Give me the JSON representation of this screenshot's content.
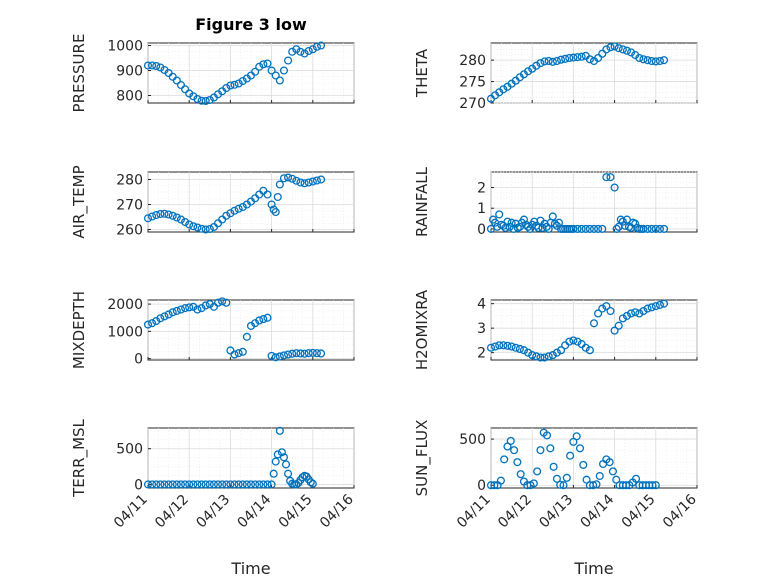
{
  "figure": {
    "title": "Figure 3 low",
    "xlabel": "Time"
  },
  "colors": {
    "marker": "#0072BD",
    "axes": "#262626",
    "grid": "#dcdcdc"
  },
  "chart_data": [
    {
      "type": "scatter",
      "name": "PRESSURE",
      "ylabel": "PRESSURE",
      "ylim": [
        770,
        1010
      ],
      "yticks": [
        800,
        900,
        1000
      ],
      "xlim": [
        "04/11",
        "04/16"
      ],
      "xticks": [],
      "grid": true,
      "x": [
        11.0,
        11.1,
        11.2,
        11.3,
        11.4,
        11.5,
        11.6,
        11.7,
        11.8,
        11.9,
        12.0,
        12.1,
        12.2,
        12.3,
        12.4,
        12.5,
        12.6,
        12.7,
        12.8,
        12.9,
        13.0,
        13.1,
        13.2,
        13.3,
        13.4,
        13.5,
        13.6,
        13.7,
        13.8,
        13.9,
        14.0,
        14.1,
        14.2,
        14.3,
        14.4,
        14.5,
        14.6,
        14.7,
        14.8,
        14.9,
        15.0,
        15.1,
        15.2
      ],
      "y": [
        920,
        920,
        918,
        912,
        902,
        890,
        875,
        860,
        842,
        825,
        808,
        797,
        786,
        779,
        778,
        782,
        792,
        805,
        817,
        830,
        840,
        843,
        848,
        858,
        868,
        880,
        895,
        915,
        925,
        928,
        900,
        880,
        860,
        900,
        940,
        975,
        985,
        975,
        968,
        978,
        985,
        995,
        1000
      ]
    },
    {
      "type": "scatter",
      "name": "THETA",
      "ylabel": "THETA",
      "ylim": [
        270,
        284
      ],
      "yticks": [
        270,
        275,
        280
      ],
      "xlim": [
        "04/11",
        "04/16"
      ],
      "xticks": [],
      "grid": true,
      "x": [
        11.0,
        11.1,
        11.2,
        11.3,
        11.4,
        11.5,
        11.6,
        11.7,
        11.8,
        11.9,
        12.0,
        12.1,
        12.2,
        12.3,
        12.4,
        12.5,
        12.6,
        12.7,
        12.8,
        12.9,
        13.0,
        13.1,
        13.2,
        13.3,
        13.4,
        13.5,
        13.6,
        13.7,
        13.8,
        13.9,
        14.0,
        14.1,
        14.2,
        14.3,
        14.4,
        14.5,
        14.6,
        14.7,
        14.8,
        14.9,
        15.0,
        15.1,
        15.2
      ],
      "y": [
        271,
        271.8,
        272.5,
        273.2,
        273.8,
        274.5,
        275.2,
        276,
        276.7,
        277.4,
        278,
        278.7,
        279.3,
        279.7,
        279.8,
        279.6,
        279.8,
        280.1,
        280.3,
        280.5,
        280.6,
        280.7,
        280.8,
        281,
        280.2,
        279.8,
        280.5,
        281.5,
        282.5,
        283,
        283.2,
        282.8,
        282.5,
        282.2,
        281.8,
        281.2,
        280.5,
        280.2,
        280,
        279.8,
        279.7,
        279.8,
        280
      ]
    },
    {
      "type": "scatter",
      "name": "AIR_TEMP",
      "ylabel": "AIR_TEMP",
      "ylim": [
        259,
        283
      ],
      "yticks": [
        260,
        270,
        280
      ],
      "xlim": [
        "04/11",
        "04/16"
      ],
      "xticks": [],
      "grid": true,
      "x": [
        11.0,
        11.1,
        11.2,
        11.3,
        11.4,
        11.5,
        11.6,
        11.7,
        11.8,
        11.9,
        12.0,
        12.1,
        12.2,
        12.3,
        12.4,
        12.5,
        12.6,
        12.7,
        12.8,
        12.9,
        13.0,
        13.1,
        13.2,
        13.3,
        13.4,
        13.5,
        13.6,
        13.7,
        13.8,
        13.9,
        14.0,
        14.05,
        14.1,
        14.15,
        14.2,
        14.3,
        14.4,
        14.5,
        14.6,
        14.7,
        14.8,
        14.9,
        15.0,
        15.1,
        15.2
      ],
      "y": [
        264.5,
        265.2,
        265.8,
        266.2,
        266.3,
        266,
        265.5,
        264.8,
        264,
        263,
        262,
        261.3,
        260.8,
        260.3,
        260,
        260.2,
        261,
        262.5,
        264,
        265.5,
        266.5,
        267.5,
        268.3,
        269,
        270,
        271.2,
        272.5,
        274,
        275.5,
        274,
        270,
        268,
        267,
        273,
        278,
        280.5,
        280.8,
        280.3,
        279.5,
        278.8,
        278.5,
        278.8,
        279.2,
        279.6,
        280
      ]
    },
    {
      "type": "scatter",
      "name": "RAINFALL",
      "ylabel": "RAINFALL",
      "ylim": [
        -0.15,
        2.75
      ],
      "yticks": [
        0,
        1,
        2
      ],
      "xlim": [
        "04/11",
        "04/16"
      ],
      "xticks": [],
      "grid": true,
      "x": [
        11.0,
        11.05,
        11.1,
        11.15,
        11.2,
        11.25,
        11.3,
        11.35,
        11.4,
        11.45,
        11.5,
        11.55,
        11.6,
        11.65,
        11.7,
        11.75,
        11.8,
        11.85,
        11.9,
        11.95,
        12.0,
        12.05,
        12.1,
        12.15,
        12.2,
        12.25,
        12.3,
        12.35,
        12.4,
        12.45,
        12.5,
        12.55,
        12.6,
        12.65,
        12.7,
        12.75,
        12.8,
        12.85,
        12.9,
        12.95,
        13.0,
        13.1,
        13.2,
        13.3,
        13.4,
        13.5,
        13.6,
        13.7,
        13.8,
        13.9,
        14.0,
        14.05,
        14.1,
        14.15,
        14.2,
        14.25,
        14.3,
        14.35,
        14.4,
        14.45,
        14.5,
        14.55,
        14.6,
        14.65,
        14.7,
        14.8,
        14.9,
        15.0,
        15.1,
        15.2
      ],
      "y": [
        0,
        0.45,
        0.3,
        0.1,
        0.7,
        0.2,
        0.15,
        0.05,
        0.35,
        0.1,
        0.3,
        0,
        0.25,
        0.05,
        0.1,
        0.3,
        0.45,
        0.2,
        0.1,
        0,
        0.2,
        0.35,
        0.15,
        0.05,
        0.4,
        0.05,
        0.25,
        0.1,
        0,
        0.3,
        0.6,
        0.25,
        0.15,
        0.3,
        0,
        0,
        0,
        0,
        0,
        0,
        0,
        0,
        0,
        0,
        0,
        0,
        0,
        0,
        2.5,
        2.5,
        2.0,
        0,
        0.1,
        0.45,
        0.35,
        0.15,
        0.45,
        0.1,
        0.05,
        0.3,
        0.25,
        0.05,
        0,
        0,
        0,
        0,
        0,
        0,
        0,
        0
      ]
    },
    {
      "type": "scatter",
      "name": "MIXDEPTH",
      "ylabel": "MIXDEPTH",
      "ylim": [
        -50,
        2150
      ],
      "yticks": [
        0,
        1000,
        2000
      ],
      "xlim": [
        "04/11",
        "04/16"
      ],
      "xticks": [],
      "grid": true,
      "x": [
        11.0,
        11.1,
        11.2,
        11.3,
        11.4,
        11.5,
        11.6,
        11.7,
        11.8,
        11.9,
        12.0,
        12.1,
        12.2,
        12.3,
        12.4,
        12.5,
        12.6,
        12.7,
        12.8,
        12.9,
        13.0,
        13.1,
        13.2,
        13.3,
        13.4,
        13.5,
        13.6,
        13.7,
        13.8,
        13.9,
        14.0,
        14.1,
        14.2,
        14.3,
        14.4,
        14.5,
        14.6,
        14.7,
        14.8,
        14.9,
        15.0,
        15.1,
        15.2
      ],
      "y": [
        1250,
        1300,
        1380,
        1480,
        1550,
        1620,
        1700,
        1750,
        1800,
        1850,
        1880,
        1900,
        1800,
        1850,
        1950,
        2000,
        1900,
        2050,
        2100,
        2050,
        300,
        150,
        200,
        250,
        800,
        1200,
        1300,
        1400,
        1450,
        1500,
        100,
        50,
        80,
        120,
        150,
        180,
        200,
        190,
        180,
        200,
        210,
        200,
        190
      ]
    },
    {
      "type": "scatter",
      "name": "H2OMIXRA",
      "ylabel": "H2OMIXRA",
      "ylim": [
        1.7,
        4.15
      ],
      "yticks": [
        2,
        3,
        4
      ],
      "xlim": [
        "04/11",
        "04/16"
      ],
      "xticks": [],
      "grid": true,
      "x": [
        11.0,
        11.1,
        11.2,
        11.3,
        11.4,
        11.5,
        11.6,
        11.7,
        11.8,
        11.9,
        12.0,
        12.1,
        12.2,
        12.3,
        12.4,
        12.5,
        12.6,
        12.7,
        12.8,
        12.9,
        13.0,
        13.1,
        13.2,
        13.3,
        13.4,
        13.5,
        13.6,
        13.7,
        13.8,
        13.9,
        14.0,
        14.1,
        14.2,
        14.3,
        14.4,
        14.5,
        14.6,
        14.7,
        14.8,
        14.9,
        15.0,
        15.1,
        15.2
      ],
      "y": [
        2.2,
        2.25,
        2.3,
        2.3,
        2.28,
        2.25,
        2.2,
        2.15,
        2.1,
        2.0,
        1.9,
        1.85,
        1.8,
        1.8,
        1.85,
        1.9,
        2.0,
        2.1,
        2.3,
        2.45,
        2.5,
        2.45,
        2.35,
        2.2,
        2.1,
        3.2,
        3.6,
        3.8,
        3.9,
        3.7,
        2.9,
        3.1,
        3.4,
        3.5,
        3.6,
        3.65,
        3.6,
        3.7,
        3.8,
        3.85,
        3.9,
        3.95,
        4.0
      ]
    },
    {
      "type": "scatter",
      "name": "TERR_MSL",
      "ylabel": "TERR_MSL",
      "ylim": [
        -50,
        790
      ],
      "yticks": [
        0,
        500
      ],
      "xlim": [
        "04/11",
        "04/16"
      ],
      "xticks": [
        "04/11",
        "04/12",
        "04/13",
        "04/14",
        "04/15",
        "04/16"
      ],
      "grid": true,
      "x": [
        11.0,
        11.1,
        11.2,
        11.3,
        11.4,
        11.5,
        11.6,
        11.7,
        11.8,
        11.9,
        12.0,
        12.1,
        12.2,
        12.3,
        12.4,
        12.5,
        12.6,
        12.7,
        12.8,
        12.9,
        13.0,
        13.1,
        13.2,
        13.3,
        13.4,
        13.5,
        13.6,
        13.7,
        13.8,
        13.9,
        14.0,
        14.05,
        14.1,
        14.15,
        14.2,
        14.25,
        14.3,
        14.35,
        14.4,
        14.45,
        14.5,
        14.55,
        14.6,
        14.65,
        14.7,
        14.75,
        14.8,
        14.85,
        14.9,
        14.95,
        15.0
      ],
      "y": [
        0,
        0,
        0,
        0,
        0,
        0,
        0,
        0,
        0,
        0,
        0,
        0,
        0,
        0,
        0,
        0,
        0,
        0,
        0,
        0,
        0,
        0,
        0,
        0,
        0,
        0,
        0,
        0,
        0,
        0,
        0,
        150,
        320,
        420,
        750,
        450,
        380,
        280,
        150,
        50,
        10,
        0,
        0,
        20,
        60,
        100,
        120,
        110,
        70,
        30,
        10
      ]
    },
    {
      "type": "scatter",
      "name": "SUN_FLUX",
      "ylabel": "SUN_FLUX",
      "ylim": [
        -30,
        620
      ],
      "yticks": [
        0,
        500
      ],
      "xlim": [
        "04/11",
        "04/16"
      ],
      "xticks": [
        "04/11",
        "04/12",
        "04/13",
        "04/14",
        "04/15",
        "04/16"
      ],
      "grid": true,
      "x": [
        11.0,
        11.08,
        11.16,
        11.24,
        11.32,
        11.4,
        11.48,
        11.56,
        11.64,
        11.72,
        11.8,
        11.88,
        11.96,
        12.04,
        12.12,
        12.2,
        12.28,
        12.36,
        12.44,
        12.52,
        12.6,
        12.68,
        12.76,
        12.84,
        12.92,
        13.0,
        13.08,
        13.16,
        13.24,
        13.32,
        13.4,
        13.48,
        13.56,
        13.64,
        13.72,
        13.8,
        13.88,
        13.96,
        14.04,
        14.12,
        14.2,
        14.28,
        14.36,
        14.44,
        14.52,
        14.6,
        14.68,
        14.76,
        14.84,
        14.92,
        15.0
      ],
      "y": [
        0,
        0,
        0,
        50,
        280,
        420,
        480,
        380,
        250,
        120,
        40,
        0,
        0,
        20,
        150,
        380,
        570,
        540,
        400,
        200,
        70,
        5,
        0,
        80,
        320,
        470,
        530,
        400,
        220,
        60,
        0,
        0,
        10,
        100,
        230,
        280,
        250,
        150,
        60,
        0,
        0,
        0,
        0,
        30,
        70,
        0,
        0,
        0,
        0,
        0,
        0
      ]
    }
  ]
}
